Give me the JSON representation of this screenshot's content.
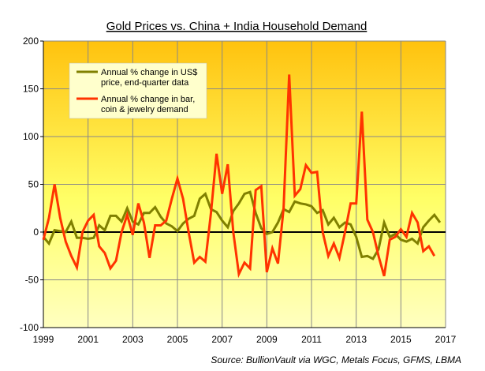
{
  "chart_data": {
    "type": "line",
    "title": "Gold Prices vs. China + India Household Demand",
    "source": "Source: BullionVault via WGC, Metals Focus, GFMS, LBMA",
    "xlabel": "",
    "ylabel": "",
    "xlim": [
      1999,
      2017
    ],
    "ylim": [
      -100,
      200
    ],
    "x_ticks": [
      "1999",
      "2001",
      "2003",
      "2005",
      "2007",
      "2009",
      "2011",
      "2013",
      "2015",
      "2017"
    ],
    "y_ticks": [
      "-100",
      "-50",
      "0",
      "50",
      "100",
      "150",
      "200"
    ],
    "grid": true,
    "legend_position": "top-left",
    "x_start": 1999,
    "x_step": 0.25,
    "series": [
      {
        "name": "Annual % change in US$ price, end-quarter data",
        "legend_lines": [
          "Annual % change in US$",
          "price, end-quarter data"
        ],
        "color": "#808000",
        "values": [
          -5,
          -12,
          2,
          1,
          0,
          11,
          -6,
          -6,
          -7,
          -6,
          7,
          2,
          17,
          17,
          11,
          25,
          11,
          8,
          20,
          20,
          26,
          16,
          9,
          6,
          1,
          9,
          14,
          17,
          35,
          40,
          24,
          21,
          12,
          5,
          22,
          30,
          40,
          42,
          20,
          4,
          -2,
          0,
          10,
          24,
          21,
          32,
          30,
          29,
          27,
          20,
          23,
          8,
          15,
          5,
          10,
          8,
          -5,
          -26,
          -25,
          -28,
          -18,
          10,
          -5,
          -2,
          -8,
          -10,
          -7,
          -12,
          5,
          12,
          18,
          10
        ]
      },
      {
        "name": "Annual % change in bar, coin & jewelry demand",
        "legend_lines": [
          "Annual % change in bar,",
          "coin & jewelry demand"
        ],
        "color": "#FF3300",
        "values": [
          -8,
          15,
          50,
          15,
          -10,
          -25,
          -37,
          0,
          12,
          18,
          -15,
          -22,
          -38,
          -30,
          0,
          18,
          -3,
          30,
          10,
          -27,
          7,
          7,
          12,
          35,
          56,
          35,
          0,
          -32,
          -26,
          -31,
          20,
          82,
          40,
          71,
          0,
          -44,
          -32,
          -38,
          44,
          48,
          -42,
          -17,
          -33,
          25,
          165,
          38,
          45,
          70,
          62,
          63,
          0,
          -25,
          -12,
          -27,
          0,
          30,
          30,
          126,
          13,
          0,
          -25,
          -46,
          -8,
          -5,
          3,
          -5,
          20,
          10,
          -20,
          -15,
          -25
        ]
      }
    ]
  }
}
